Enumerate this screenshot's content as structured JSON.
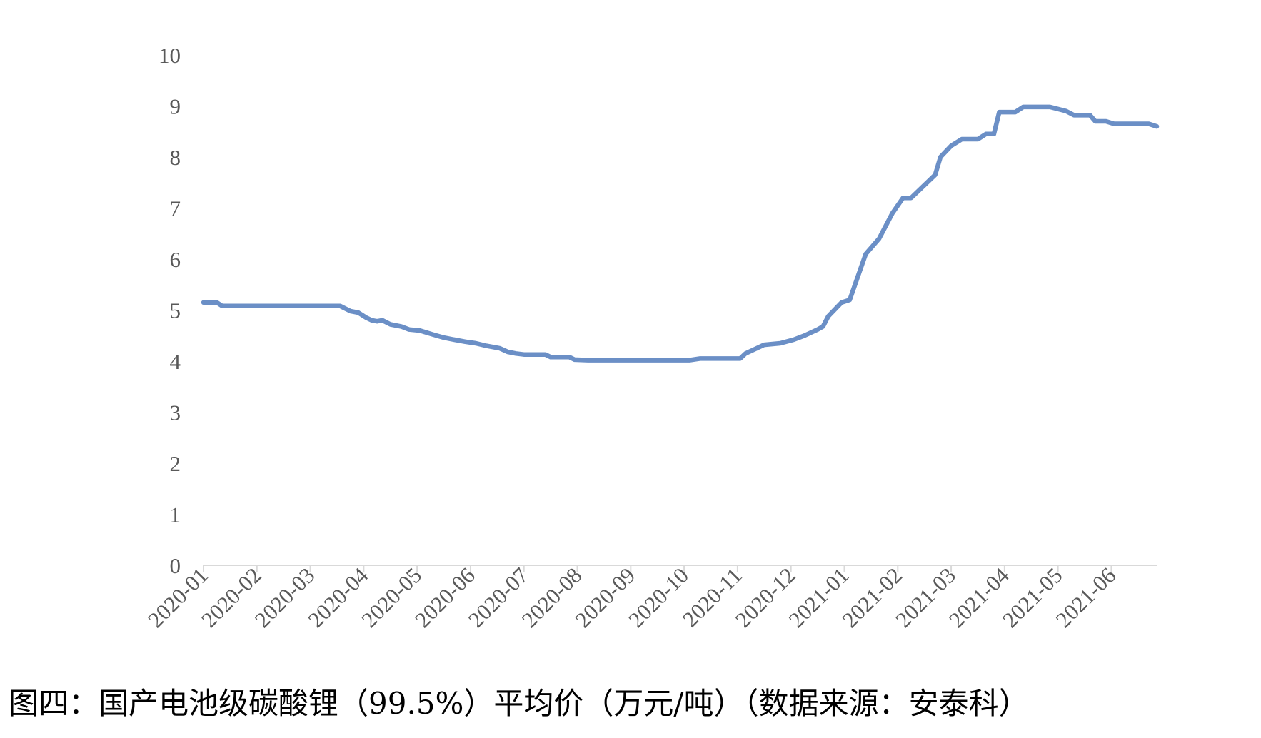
{
  "chart_data": {
    "type": "line",
    "caption": "图四：国产电池级碳酸锂（99.5%）平均价（万元/吨）（数据来源：安泰科）",
    "color": "#6b8fc6",
    "x": [
      0,
      0.25,
      0.35,
      2.56,
      2.75,
      2.9,
      3.05,
      3.15,
      3.25,
      3.35,
      3.5,
      3.7,
      3.85,
      4.05,
      4.3,
      4.5,
      4.7,
      4.9,
      5.1,
      5.3,
      5.55,
      5.7,
      5.85,
      6.0,
      6.4,
      6.5,
      6.85,
      6.95,
      7.2,
      9.1,
      9.3,
      10.05,
      10.15,
      10.5,
      10.8,
      11.05,
      11.25,
      11.5,
      11.6,
      11.7,
      11.95,
      12.1,
      12.3,
      12.4,
      12.65,
      12.9,
      13.1,
      13.25,
      13.7,
      13.8,
      14.0,
      14.2,
      14.5,
      14.65,
      14.8,
      14.9,
      15.2,
      15.35,
      15.85,
      16.15,
      16.3,
      16.6,
      16.7,
      16.9,
      17.05,
      17.7,
      17.85
    ],
    "values": [
      5.15,
      5.15,
      5.08,
      5.08,
      4.98,
      4.95,
      4.85,
      4.8,
      4.78,
      4.8,
      4.72,
      4.68,
      4.62,
      4.6,
      4.52,
      4.46,
      4.42,
      4.38,
      4.35,
      4.3,
      4.25,
      4.18,
      4.15,
      4.13,
      4.13,
      4.08,
      4.08,
      4.03,
      4.02,
      4.02,
      4.05,
      4.05,
      4.15,
      4.32,
      4.35,
      4.42,
      4.5,
      4.62,
      4.68,
      4.88,
      5.15,
      5.2,
      5.8,
      6.1,
      6.4,
      6.9,
      7.2,
      7.2,
      7.65,
      8.0,
      8.22,
      8.35,
      8.35,
      8.45,
      8.45,
      8.88,
      8.88,
      8.98,
      8.98,
      8.9,
      8.82,
      8.82,
      8.7,
      8.7,
      8.65,
      8.65,
      8.6
    ],
    "xlim": [
      0,
      17.85
    ],
    "xticks": [
      {
        "value": 0,
        "label": "2020-01"
      },
      {
        "value": 1,
        "label": "2020-02"
      },
      {
        "value": 2,
        "label": "2020-03"
      },
      {
        "value": 3,
        "label": "2020-04"
      },
      {
        "value": 4,
        "label": "2020-05"
      },
      {
        "value": 5,
        "label": "2020-06"
      },
      {
        "value": 6,
        "label": "2020-07"
      },
      {
        "value": 7,
        "label": "2020-08"
      },
      {
        "value": 8,
        "label": "2020-09"
      },
      {
        "value": 9,
        "label": "2020-10"
      },
      {
        "value": 10,
        "label": "2020-11"
      },
      {
        "value": 11,
        "label": "2020-12"
      },
      {
        "value": 12,
        "label": "2021-01"
      },
      {
        "value": 13,
        "label": "2021-02"
      },
      {
        "value": 14,
        "label": "2021-03"
      },
      {
        "value": 15,
        "label": "2021-04"
      },
      {
        "value": 16,
        "label": "2021-05"
      },
      {
        "value": 17,
        "label": "2021-06"
      }
    ],
    "ylim": [
      0,
      10
    ],
    "yticks": [
      0,
      1,
      2,
      3,
      4,
      5,
      6,
      7,
      8,
      9,
      10
    ],
    "grid": false
  }
}
